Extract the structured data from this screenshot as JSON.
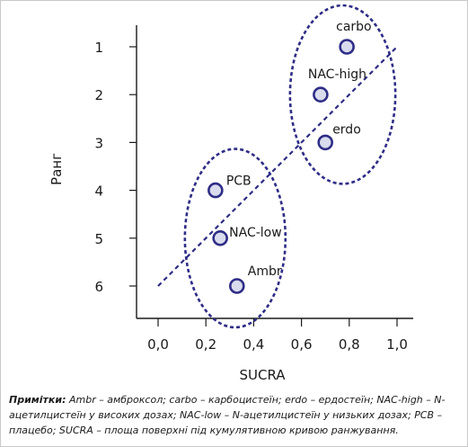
{
  "chart_data": {
    "type": "scatter",
    "xlabel": "SUCRA",
    "ylabel": "Ранг",
    "xlim": [
      0,
      1
    ],
    "ylim": [
      1,
      6
    ],
    "y_inverted": true,
    "x_ticks": [
      "0,0",
      "0,2",
      "0,4",
      "0,6",
      "0,8",
      "1,0"
    ],
    "y_ticks": [
      "1",
      "2",
      "3",
      "4",
      "5",
      "6"
    ],
    "points": [
      {
        "label": "carbo",
        "x": 0.79,
        "y": 1
      },
      {
        "label": "NAC-high",
        "x": 0.68,
        "y": 2
      },
      {
        "label": "erdo",
        "x": 0.7,
        "y": 3
      },
      {
        "label": "PCB",
        "x": 0.24,
        "y": 4
      },
      {
        "label": "NAC-low",
        "x": 0.26,
        "y": 5
      },
      {
        "label": "Ambr",
        "x": 0.33,
        "y": 6
      }
    ],
    "trend_line": {
      "x": [
        0,
        1
      ],
      "y": [
        6,
        1
      ]
    },
    "groups": [
      {
        "members": [
          "carbo",
          "NAC-high",
          "erdo"
        ]
      },
      {
        "members": [
          "PCB",
          "NAC-low",
          "Ambr"
        ]
      }
    ],
    "grid": false,
    "colors": {
      "marker_fill": "#d9dcec",
      "marker_stroke": "#2e2d86",
      "dashed": "#2e2d86"
    }
  },
  "note": {
    "prefix": "Примітки:",
    "text": " Ambr – амброксол; carbo – карбоцистеїн; erdo – ердостеїн; NAC-high – N-ацетилцистеїн у високих дозах; NAC-low – N-ацетилцистеїн у низьких дозах; PCB – плацебо; SUCRA – площа поверхні під кумулятивною кривою ранжування."
  }
}
